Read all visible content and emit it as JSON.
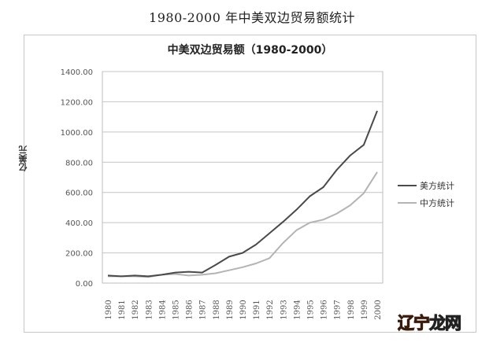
{
  "page": {
    "title": "1980-2000 年中美双边贸易额统计"
  },
  "chart": {
    "title": "中美双边贸易额（1980-2000）",
    "ylabel": "亿美元",
    "legend": [
      {
        "label": "美方统计",
        "color": "#4a4a4a"
      },
      {
        "label": "中方统计",
        "color": "#b4b4b4"
      }
    ]
  },
  "watermark": {
    "part1": "辽宁",
    "part2": "龙网"
  },
  "chart_data": {
    "type": "line",
    "title": "中美双边贸易额（1980-2000）",
    "xlabel": "",
    "ylabel": "亿美元",
    "categories": [
      "1980",
      "1981",
      "1982",
      "1983",
      "1984",
      "1985",
      "1986",
      "1987",
      "1988",
      "1989",
      "1990",
      "1991",
      "1992",
      "1993",
      "1994",
      "1995",
      "1996",
      "1997",
      "1998",
      "1999",
      "2000"
    ],
    "series": [
      {
        "name": "美方统计",
        "color": "#4a4a4a",
        "values": [
          50,
          45,
          50,
          45,
          55,
          70,
          75,
          70,
          120,
          175,
          200,
          255,
          330,
          405,
          485,
          575,
          635,
          750,
          845,
          915,
          1140
        ]
      },
      {
        "name": "中方统计",
        "color": "#b4b4b4",
        "values": [
          45,
          45,
          45,
          40,
          55,
          60,
          50,
          55,
          65,
          85,
          105,
          130,
          165,
          265,
          350,
          400,
          420,
          460,
          515,
          595,
          735
        ]
      }
    ],
    "yticks": [
      "0.00",
      "200.00",
      "400.00",
      "600.00",
      "800.00",
      "1000.00",
      "1200.00",
      "1400.00"
    ],
    "ylim": [
      0,
      1400
    ],
    "grid": true,
    "legend_position": "right"
  }
}
